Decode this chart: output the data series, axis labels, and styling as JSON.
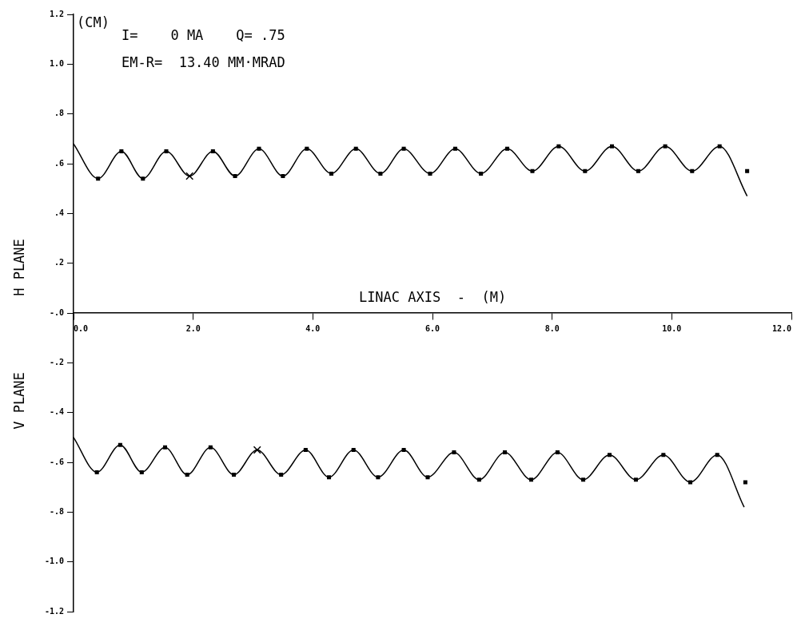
{
  "chart_data": {
    "type": "line",
    "xlabel": "LINAC AXIS  -  (M)",
    "ylabel": "(CM)",
    "annotations": [
      "I=    0 MA    Q= .75",
      "EM-R=  13.40 MM·MRAD",
      "H PLANE",
      "V PLANE"
    ],
    "xlim": [
      0,
      12
    ],
    "xticks": [
      {
        "value": 0,
        "label": "0.0"
      },
      {
        "value": 2,
        "label": "2.0"
      },
      {
        "value": 4,
        "label": "4.0"
      },
      {
        "value": 6,
        "label": "6.0"
      },
      {
        "value": 8,
        "label": "8.0"
      },
      {
        "value": 10,
        "label": "10.0"
      },
      {
        "value": 12,
        "label": "12.0"
      }
    ],
    "ylim": [
      -1.2,
      1.2
    ],
    "yticks": [
      {
        "value": -1.2,
        "label": "-1.2"
      },
      {
        "value": -1,
        "label": "-1.0"
      },
      {
        "value": -0.8,
        "label": "-.8"
      },
      {
        "value": -0.6,
        "label": "-.6"
      },
      {
        "value": -0.4,
        "label": "-.4"
      },
      {
        "value": -0.2,
        "label": "-.2"
      },
      {
        "value": 0,
        "label": "-.0"
      },
      {
        "value": 0.2,
        "label": ".2"
      },
      {
        "value": 0.4,
        "label": ".4"
      },
      {
        "value": 0.6,
        "label": ".6"
      },
      {
        "value": 0.8,
        "label": ".8"
      },
      {
        "value": 1,
        "label": "1.0"
      },
      {
        "value": 1.2,
        "label": "1.2"
      }
    ],
    "grid": false,
    "legend": false,
    "series": [
      {
        "color": "#000000",
        "marker": "none",
        "x": [
          0,
          0.41,
          0.8,
          1.16,
          1.55,
          1.94,
          2.33,
          2.7,
          3.1,
          3.5,
          3.9,
          4.31,
          4.72,
          5.13,
          5.52,
          5.96,
          6.38,
          6.81,
          7.25,
          7.67,
          8.11,
          8.55,
          9.0,
          9.44,
          9.89,
          10.34,
          10.8,
          11.26
        ],
        "values": [
          0.68,
          0.54,
          0.65,
          0.54,
          0.65,
          0.55,
          0.65,
          0.55,
          0.66,
          0.55,
          0.66,
          0.56,
          0.66,
          0.56,
          0.66,
          0.56,
          0.66,
          0.56,
          0.66,
          0.57,
          0.67,
          0.57,
          0.67,
          0.57,
          0.67,
          0.57,
          0.67,
          0.47
        ]
      },
      {
        "type": "scatter",
        "color": "#000000",
        "marker": "square",
        "x": [
          0.41,
          0.8,
          1.16,
          1.55,
          2.33,
          2.7,
          3.1,
          3.5,
          3.9,
          4.31,
          4.72,
          5.13,
          5.52,
          5.96,
          6.38,
          6.81,
          7.25,
          7.67,
          8.11,
          8.55,
          9.0,
          9.44,
          9.89,
          10.34,
          10.8,
          11.26
        ],
        "values": [
          0.54,
          0.65,
          0.54,
          0.65,
          0.65,
          0.55,
          0.66,
          0.55,
          0.66,
          0.56,
          0.66,
          0.56,
          0.66,
          0.56,
          0.66,
          0.56,
          0.66,
          0.57,
          0.67,
          0.57,
          0.67,
          0.57,
          0.67,
          0.57,
          0.67,
          0.57
        ]
      },
      {
        "type": "scatter",
        "color": "#000000",
        "marker": "cross",
        "x": [
          1.94
        ],
        "values": [
          0.55
        ]
      },
      {
        "color": "#000000",
        "marker": "none",
        "x": [
          0,
          0.39,
          0.78,
          1.14,
          1.53,
          1.9,
          2.29,
          2.68,
          3.07,
          3.47,
          3.88,
          4.27,
          4.68,
          5.09,
          5.52,
          5.92,
          6.36,
          6.78,
          7.21,
          7.65,
          8.09,
          8.52,
          8.96,
          9.4,
          9.86,
          10.31,
          10.76,
          11.21
        ],
        "values": [
          -0.5,
          -0.64,
          -0.53,
          -0.64,
          -0.54,
          -0.65,
          -0.54,
          -0.65,
          -0.55,
          -0.65,
          -0.55,
          -0.66,
          -0.55,
          -0.66,
          -0.55,
          -0.66,
          -0.56,
          -0.67,
          -0.56,
          -0.67,
          -0.56,
          -0.67,
          -0.57,
          -0.67,
          -0.57,
          -0.68,
          -0.57,
          -0.78
        ]
      },
      {
        "type": "scatter",
        "color": "#000000",
        "marker": "square",
        "x": [
          0.39,
          0.78,
          1.14,
          1.53,
          1.9,
          2.29,
          2.68,
          3.47,
          3.88,
          4.27,
          4.68,
          5.09,
          5.52,
          5.92,
          6.36,
          6.78,
          7.21,
          7.65,
          8.09,
          8.52,
          8.96,
          9.4,
          9.86,
          10.31,
          10.76,
          11.23
        ],
        "values": [
          -0.64,
          -0.53,
          -0.64,
          -0.54,
          -0.65,
          -0.54,
          -0.65,
          -0.65,
          -0.55,
          -0.66,
          -0.55,
          -0.66,
          -0.55,
          -0.66,
          -0.56,
          -0.67,
          -0.56,
          -0.67,
          -0.56,
          -0.67,
          -0.57,
          -0.67,
          -0.57,
          -0.68,
          -0.57,
          -0.68
        ]
      },
      {
        "type": "scatter",
        "color": "#000000",
        "marker": "cross",
        "x": [
          3.07
        ],
        "values": [
          -0.55
        ]
      }
    ]
  }
}
